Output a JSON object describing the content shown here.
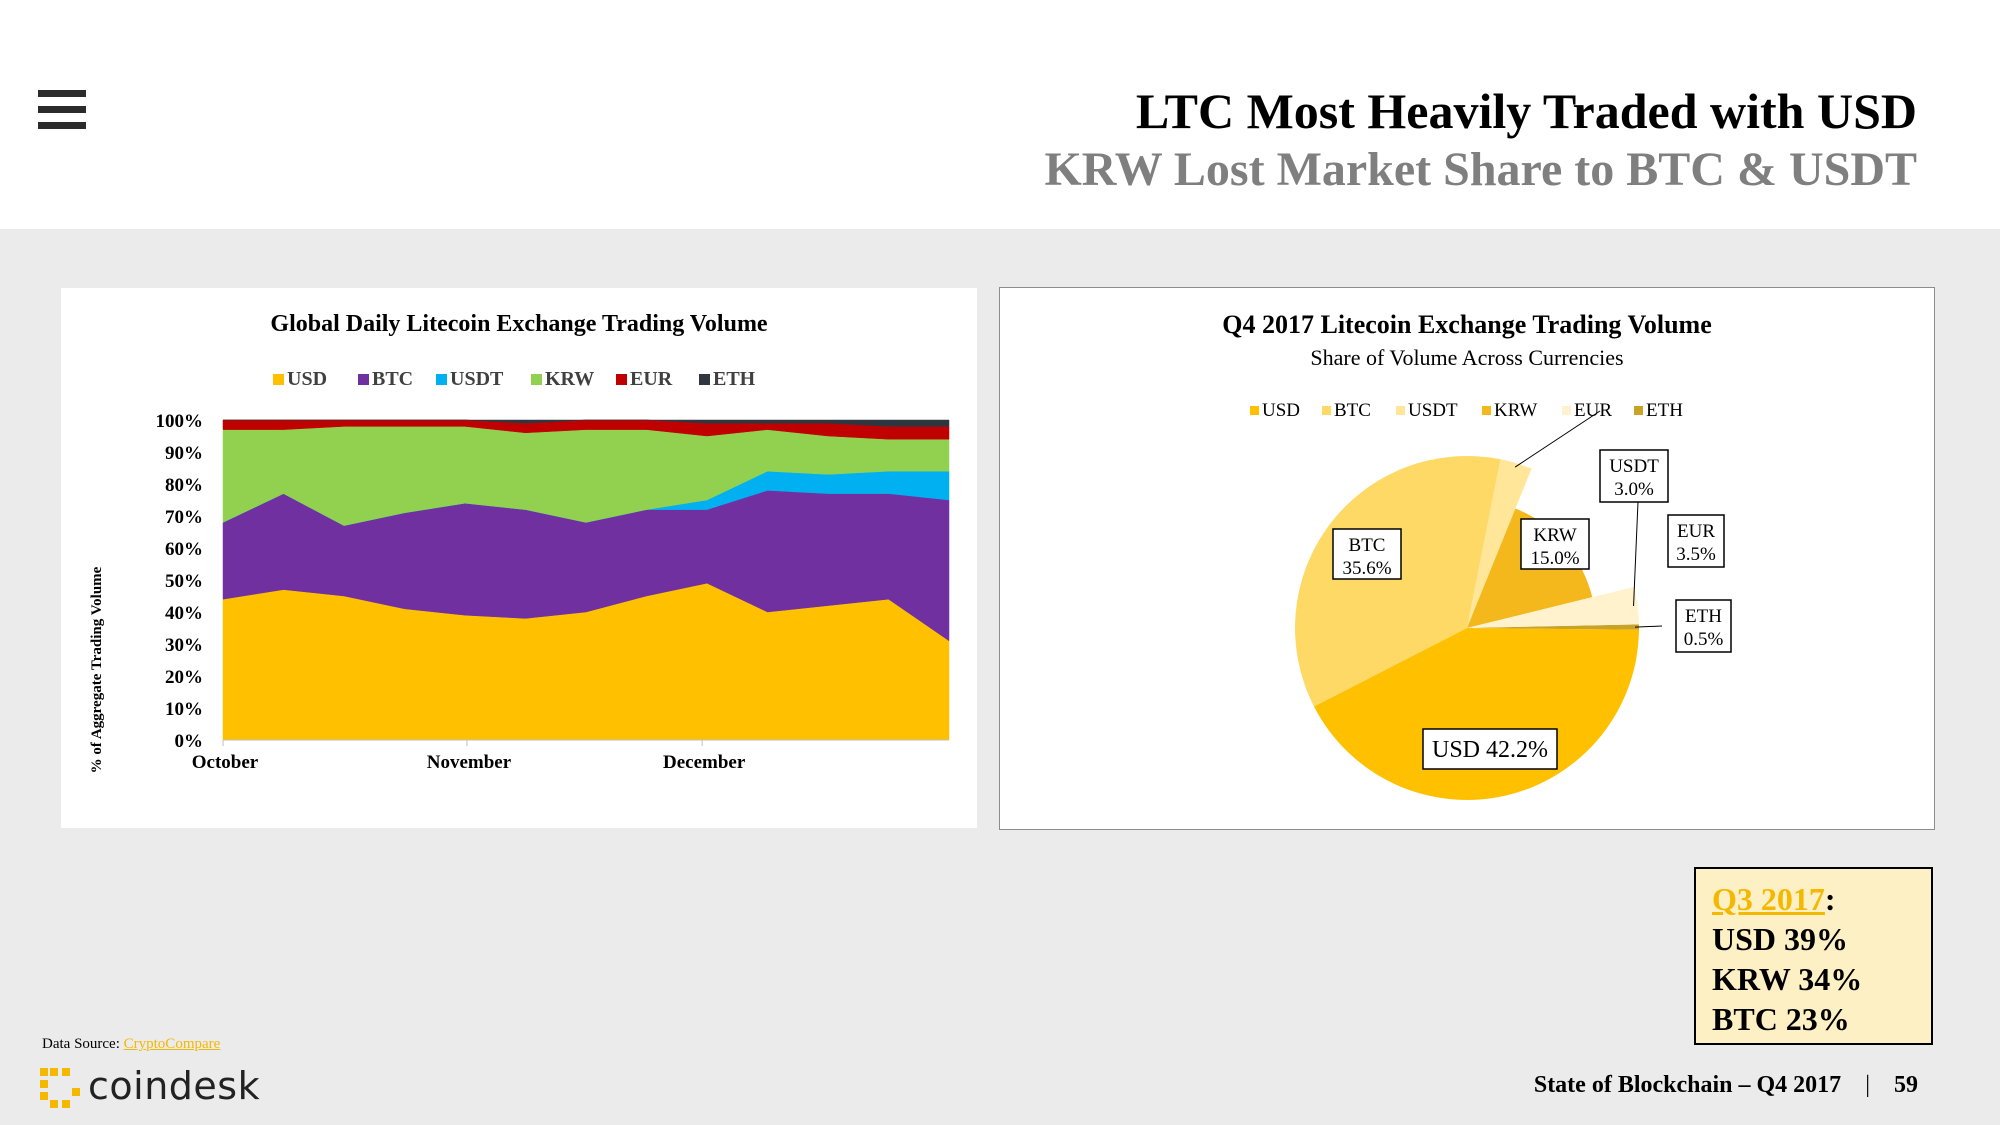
{
  "header": {
    "title": "LTC Most Heavily Traded with USD",
    "subtitle": "KRW Lost Market Share to BTC & USDT"
  },
  "colors": {
    "usd": "#ffc000",
    "btc": "#7030a0",
    "usdt": "#00b0f0",
    "krw": "#92d050",
    "eur": "#c00000",
    "eth": "#2f3640",
    "pie_usd": "#ffc000",
    "pie_btc": "#ffd966",
    "pie_usdt": "#ffe699",
    "pie_krw": "#f4b81c",
    "pie_eur": "#fff2cc",
    "pie_eth": "#c9a227",
    "accent": "#f5b800"
  },
  "chart_data": [
    {
      "type": "area",
      "title": "Global Daily Litecoin Exchange Trading Volume",
      "ylabel": "% of Aggregate Trading Volume",
      "xlabel": "",
      "x_ticks": [
        "October",
        "November",
        "December"
      ],
      "y_ticks": [
        "0%",
        "10%",
        "20%",
        "30%",
        "40%",
        "50%",
        "60%",
        "70%",
        "80%",
        "90%",
        "100%"
      ],
      "ylim": [
        0,
        100
      ],
      "stacked": true,
      "x": [
        "Oct 1",
        "Oct 8",
        "Oct 15",
        "Oct 22",
        "Nov 1",
        "Nov 8",
        "Nov 15",
        "Nov 22",
        "Dec 1",
        "Dec 8",
        "Dec 15",
        "Dec 22",
        "Dec 31"
      ],
      "legend_position": "top",
      "series": [
        {
          "name": "USD",
          "values": [
            44,
            47,
            45,
            41,
            39,
            38,
            40,
            45,
            49,
            40,
            42,
            44,
            31
          ]
        },
        {
          "name": "BTC",
          "values": [
            24,
            30,
            22,
            30,
            35,
            34,
            28,
            27,
            23,
            38,
            35,
            33,
            44
          ]
        },
        {
          "name": "USDT",
          "values": [
            0,
            0,
            0,
            0,
            0,
            0,
            0,
            0,
            3,
            6,
            6,
            7,
            9
          ]
        },
        {
          "name": "KRW",
          "values": [
            29,
            20,
            31,
            27,
            24,
            24,
            29,
            25,
            20,
            13,
            12,
            10,
            10
          ]
        },
        {
          "name": "EUR",
          "values": [
            3,
            3,
            2,
            2,
            2,
            3,
            3,
            3,
            4,
            2,
            4,
            4,
            4
          ]
        },
        {
          "name": "ETH",
          "values": [
            0,
            0,
            0,
            0,
            0,
            1,
            0,
            0,
            1,
            1,
            1,
            2,
            2
          ]
        }
      ]
    },
    {
      "type": "pie",
      "title": "Q4 2017 Litecoin Exchange Trading Volume",
      "subtitle": "Share of Volume Across Currencies",
      "legend_position": "top",
      "categories": [
        "USD",
        "BTC",
        "USDT",
        "KRW",
        "EUR",
        "ETH"
      ],
      "values": [
        42.2,
        35.6,
        3.0,
        15.0,
        3.5,
        0.5
      ],
      "labels": {
        "USD": "USD 42.2%",
        "BTC_name": "BTC",
        "BTC_val": "35.6%",
        "USDT_name": "USDT",
        "USDT_val": "3.0%",
        "KRW_name": "KRW",
        "KRW_val": "15.0%",
        "EUR_name": "EUR",
        "EUR_val": "3.5%",
        "ETH_name": "ETH",
        "ETH_val": "0.5%"
      }
    }
  ],
  "q3": {
    "link": "Q3 2017",
    "colon": ":",
    "lines": [
      "USD 39%",
      "KRW 34%",
      "BTC 23%"
    ]
  },
  "footer": {
    "source_label": "Data Source: ",
    "source_link": "CryptoCompare",
    "logo": "coindesk",
    "report": "State of Blockchain – Q4 2017",
    "separator": "|",
    "page": "59"
  }
}
